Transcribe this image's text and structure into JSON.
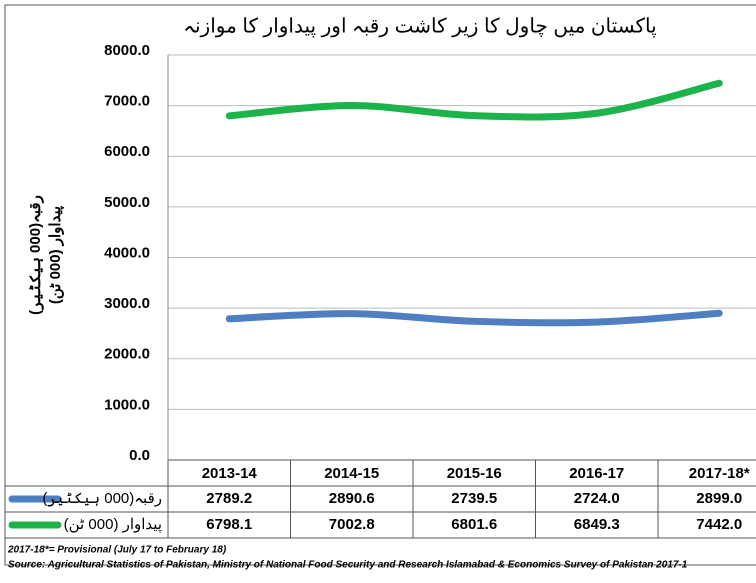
{
  "chart_data": {
    "type": "line",
    "title": "پاکستان میں چاول کا زیر کاشت رقبہ اور پیداوار کا موازنہ",
    "y_label": [
      "رقبہ(000 ہیکٹیر)",
      "پیداوار (000 ٹن)"
    ],
    "categories": [
      "2013-14",
      "2014-15",
      "2015-16",
      "2016-17",
      "2017-18*"
    ],
    "series": [
      {
        "name": "رقبہ(000 ہیکٹیر)",
        "color": "#4f7fc0",
        "values": [
          2789.2,
          2890.6,
          2739.5,
          2724.0,
          2899.0
        ],
        "value_labels": [
          "2789.2",
          "2890.6",
          "2739.5",
          "2724.0",
          "2899.0"
        ]
      },
      {
        "name": "پیداوار (000 ٹن)",
        "color": "#1db34b",
        "values": [
          6798.1,
          7002.8,
          6801.6,
          6849.3,
          7442.0
        ],
        "value_labels": [
          "6798.1",
          "7002.8",
          "6801.6",
          "6849.3",
          "7442.0"
        ]
      }
    ],
    "ylim": [
      0,
      8000
    ],
    "yticks": [
      {
        "value": 0,
        "label": "0.0"
      },
      {
        "value": 1000,
        "label": "1000.0"
      },
      {
        "value": 2000,
        "label": "2000.0"
      },
      {
        "value": 3000,
        "label": "3000.0"
      },
      {
        "value": 4000,
        "label": "4000.0"
      },
      {
        "value": 5000,
        "label": "5000.0"
      },
      {
        "value": 6000,
        "label": "6000.0"
      },
      {
        "value": 7000,
        "label": "7000.0"
      },
      {
        "value": 8000,
        "label": "8000.0"
      }
    ],
    "grid": true,
    "notes": [
      "2017-18*= Provisional (July 17 to February 18)",
      "Source: Agricultural Statistics of Pakistan, Ministry of National Food Security and Research Islamabad & Economics Survey of Pakistan 2017-1"
    ]
  }
}
